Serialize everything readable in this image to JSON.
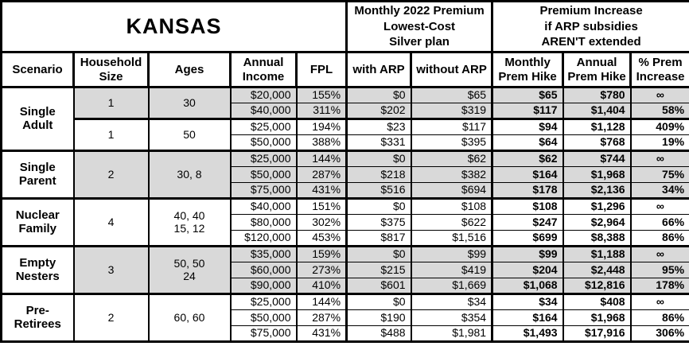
{
  "colors": {
    "shaded_row": "#d9d9d9",
    "border": "#000000",
    "background": "#ffffff",
    "text": "#000000"
  },
  "title": "KANSAS",
  "section_headers": {
    "premium": "Monthly 2022 Premium\nLowest-Cost\nSilver plan",
    "increase": "Premium Increase\nif ARP subsidies\nAREN'T extended"
  },
  "columns": [
    "Scenario",
    "Household\nSize",
    "Ages",
    "Annual\nIncome",
    "FPL",
    "with ARP",
    "without ARP",
    "Monthly\nPrem Hike",
    "Annual\nPrem Hike",
    "% Prem\nIncrease"
  ],
  "groups": [
    {
      "scenario": "Single\nAdult",
      "subgroups": [
        {
          "size": "1",
          "ages": "30",
          "shaded": true,
          "rows": [
            {
              "income": "$20,000",
              "fpl": "155%",
              "with_arp": "$0",
              "without_arp": "$65",
              "monthly_hike": "$65",
              "annual_hike": "$780",
              "pct_increase": "∞"
            },
            {
              "income": "$40,000",
              "fpl": "311%",
              "with_arp": "$202",
              "without_arp": "$319",
              "monthly_hike": "$117",
              "annual_hike": "$1,404",
              "pct_increase": "58%"
            }
          ]
        },
        {
          "size": "1",
          "ages": "50",
          "shaded": false,
          "rows": [
            {
              "income": "$25,000",
              "fpl": "194%",
              "with_arp": "$23",
              "without_arp": "$117",
              "monthly_hike": "$94",
              "annual_hike": "$1,128",
              "pct_increase": "409%"
            },
            {
              "income": "$50,000",
              "fpl": "388%",
              "with_arp": "$331",
              "without_arp": "$395",
              "monthly_hike": "$64",
              "annual_hike": "$768",
              "pct_increase": "19%"
            }
          ]
        }
      ]
    },
    {
      "scenario": "Single\nParent",
      "subgroups": [
        {
          "size": "2",
          "ages": "30, 8",
          "shaded": true,
          "rows": [
            {
              "income": "$25,000",
              "fpl": "144%",
              "with_arp": "$0",
              "without_arp": "$62",
              "monthly_hike": "$62",
              "annual_hike": "$744",
              "pct_increase": "∞"
            },
            {
              "income": "$50,000",
              "fpl": "287%",
              "with_arp": "$218",
              "without_arp": "$382",
              "monthly_hike": "$164",
              "annual_hike": "$1,968",
              "pct_increase": "75%"
            },
            {
              "income": "$75,000",
              "fpl": "431%",
              "with_arp": "$516",
              "without_arp": "$694",
              "monthly_hike": "$178",
              "annual_hike": "$2,136",
              "pct_increase": "34%"
            }
          ]
        }
      ]
    },
    {
      "scenario": "Nuclear\nFamily",
      "subgroups": [
        {
          "size": "4",
          "ages": "40, 40\n15, 12",
          "shaded": false,
          "rows": [
            {
              "income": "$40,000",
              "fpl": "151%",
              "with_arp": "$0",
              "without_arp": "$108",
              "monthly_hike": "$108",
              "annual_hike": "$1,296",
              "pct_increase": "∞"
            },
            {
              "income": "$80,000",
              "fpl": "302%",
              "with_arp": "$375",
              "without_arp": "$622",
              "monthly_hike": "$247",
              "annual_hike": "$2,964",
              "pct_increase": "66%"
            },
            {
              "income": "$120,000",
              "fpl": "453%",
              "with_arp": "$817",
              "without_arp": "$1,516",
              "monthly_hike": "$699",
              "annual_hike": "$8,388",
              "pct_increase": "86%"
            }
          ]
        }
      ]
    },
    {
      "scenario": "Empty\nNesters",
      "subgroups": [
        {
          "size": "3",
          "ages": "50, 50\n24",
          "shaded": true,
          "rows": [
            {
              "income": "$35,000",
              "fpl": "159%",
              "with_arp": "$0",
              "without_arp": "$99",
              "monthly_hike": "$99",
              "annual_hike": "$1,188",
              "pct_increase": "∞"
            },
            {
              "income": "$60,000",
              "fpl": "273%",
              "with_arp": "$215",
              "without_arp": "$419",
              "monthly_hike": "$204",
              "annual_hike": "$2,448",
              "pct_increase": "95%"
            },
            {
              "income": "$90,000",
              "fpl": "410%",
              "with_arp": "$601",
              "without_arp": "$1,669",
              "monthly_hike": "$1,068",
              "annual_hike": "$12,816",
              "pct_increase": "178%"
            }
          ]
        }
      ]
    },
    {
      "scenario": "Pre-\nRetirees",
      "subgroups": [
        {
          "size": "2",
          "ages": "60, 60",
          "shaded": false,
          "rows": [
            {
              "income": "$25,000",
              "fpl": "144%",
              "with_arp": "$0",
              "without_arp": "$34",
              "monthly_hike": "$34",
              "annual_hike": "$408",
              "pct_increase": "∞"
            },
            {
              "income": "$50,000",
              "fpl": "287%",
              "with_arp": "$190",
              "without_arp": "$354",
              "monthly_hike": "$164",
              "annual_hike": "$1,968",
              "pct_increase": "86%"
            },
            {
              "income": "$75,000",
              "fpl": "431%",
              "with_arp": "$488",
              "without_arp": "$1,981",
              "monthly_hike": "$1,493",
              "annual_hike": "$17,916",
              "pct_increase": "306%"
            }
          ]
        }
      ]
    }
  ]
}
